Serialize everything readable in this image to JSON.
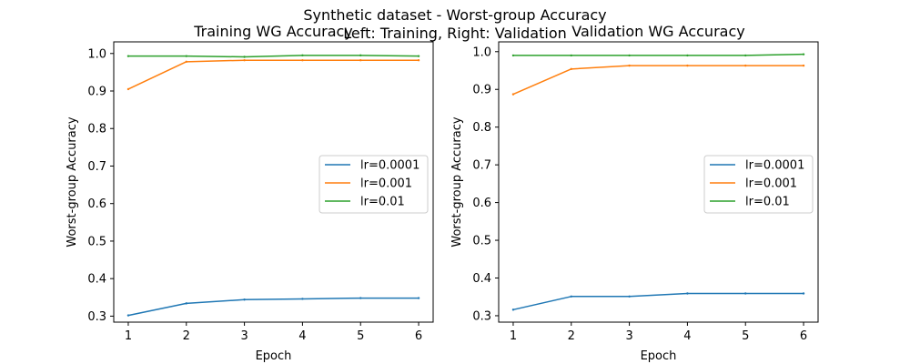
{
  "figure": {
    "suptitle_line1": "Synthetic dataset - Worst-group Accuracy",
    "suptitle_line2": "Left: Training, Right: Validation"
  },
  "chart_data": [
    {
      "type": "line",
      "title": "Training WG Accuracy",
      "xlabel": "Epoch",
      "ylabel": "Worst-group Accuracy",
      "x": [
        1,
        2,
        3,
        4,
        5,
        6
      ],
      "xticks": [
        "1",
        "2",
        "3",
        "4",
        "5",
        "6"
      ],
      "yticks": [
        "0.3",
        "0.4",
        "0.5",
        "0.6",
        "0.7",
        "0.8",
        "0.9",
        "1.0"
      ],
      "ylim": [
        0.284,
        1.031
      ],
      "xlim": [
        0.75,
        6.25
      ],
      "legend_position": "center-right",
      "grid": false,
      "series": [
        {
          "name": "lr=0.0001",
          "color": "#1f77b4",
          "values": [
            0.302,
            0.334,
            0.344,
            0.346,
            0.348,
            0.348
          ]
        },
        {
          "name": "lr=0.001",
          "color": "#ff7f0e",
          "values": [
            0.905,
            0.978,
            0.982,
            0.982,
            0.982,
            0.982
          ]
        },
        {
          "name": "lr=0.01",
          "color": "#2ca02c",
          "values": [
            0.993,
            0.993,
            0.991,
            0.995,
            0.995,
            0.993
          ]
        }
      ]
    },
    {
      "type": "line",
      "title": "Validation WG Accuracy",
      "xlabel": "Epoch",
      "ylabel": "Worst-group Accuracy",
      "x": [
        1,
        2,
        3,
        4,
        5,
        6
      ],
      "xticks": [
        "1",
        "2",
        "3",
        "4",
        "5",
        "6"
      ],
      "yticks": [
        "0.3",
        "0.4",
        "0.5",
        "0.6",
        "0.7",
        "0.8",
        "0.9",
        "1.0"
      ],
      "ylim": [
        0.283,
        1.026
      ],
      "xlim": [
        0.75,
        6.25
      ],
      "legend_position": "center-right",
      "grid": false,
      "series": [
        {
          "name": "lr=0.0001",
          "color": "#1f77b4",
          "values": [
            0.316,
            0.351,
            0.351,
            0.359,
            0.359,
            0.359
          ]
        },
        {
          "name": "lr=0.001",
          "color": "#ff7f0e",
          "values": [
            0.887,
            0.954,
            0.963,
            0.963,
            0.963,
            0.963
          ]
        },
        {
          "name": "lr=0.01",
          "color": "#2ca02c",
          "values": [
            0.99,
            0.99,
            0.99,
            0.99,
            0.99,
            0.993
          ]
        }
      ]
    }
  ]
}
